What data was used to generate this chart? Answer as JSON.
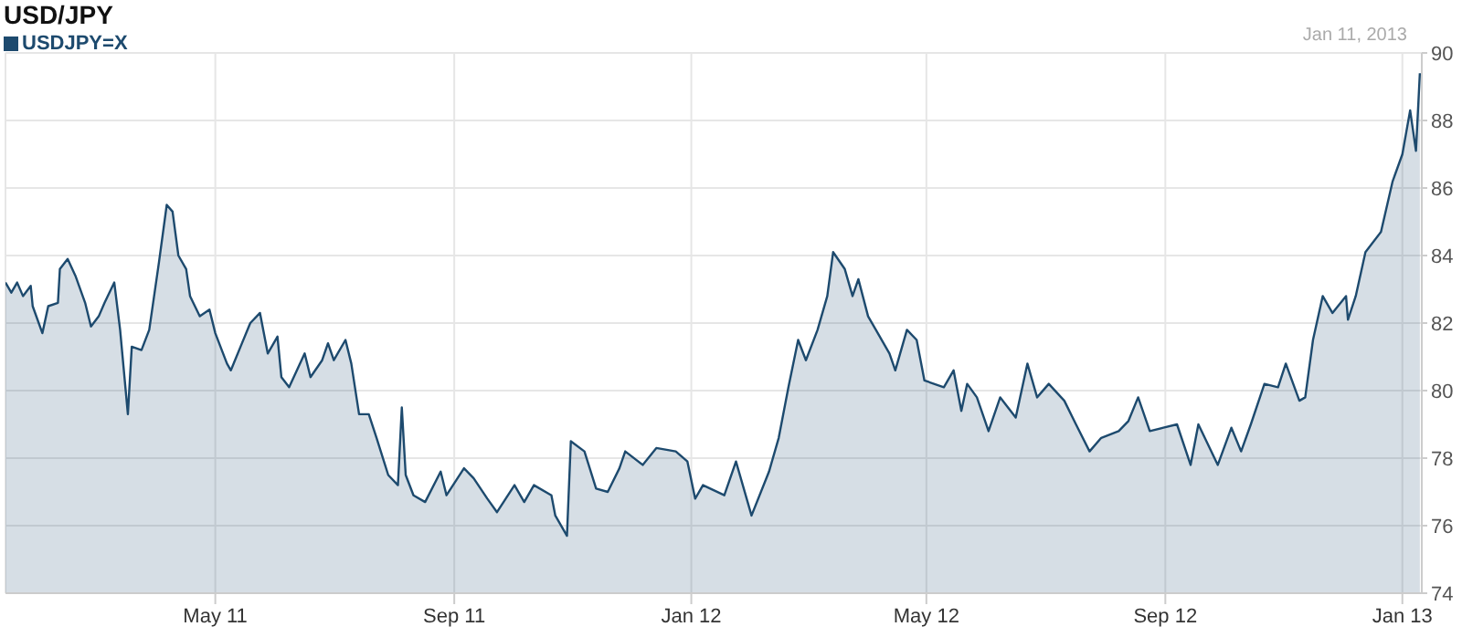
{
  "chart_data": {
    "type": "area",
    "title": "USD/JPY",
    "annotations": [
      "Jan 11, 2013"
    ],
    "legend": "top left",
    "grid": true,
    "marker": "none",
    "xlim": [
      "2011-01-13",
      "2013-01-11"
    ],
    "xticks": [
      {
        "value": "2011-05-01",
        "label": "May 11"
      },
      {
        "value": "2011-09-01",
        "label": "Sep 11"
      },
      {
        "value": "2012-01-01",
        "label": "Jan 12"
      },
      {
        "value": "2012-05-01",
        "label": "May 12"
      },
      {
        "value": "2012-09-01",
        "label": "Sep 12"
      },
      {
        "value": "2013-01-01",
        "label": "Jan 13"
      }
    ],
    "ylim": [
      74,
      90
    ],
    "yticks": [
      74,
      76,
      78,
      80,
      82,
      84,
      86,
      88,
      90
    ],
    "x": [
      "2011-01-13",
      "2011-01-16",
      "2011-01-19",
      "2011-01-22",
      "2011-01-26",
      "2011-01-27",
      "2011-02-01",
      "2011-02-04",
      "2011-02-09",
      "2011-02-10",
      "2011-02-14",
      "2011-02-18",
      "2011-02-23",
      "2011-02-26",
      "2011-03-02",
      "2011-03-05",
      "2011-03-10",
      "2011-03-13",
      "2011-03-17",
      "2011-03-19",
      "2011-03-24",
      "2011-03-28",
      "2011-04-02",
      "2011-04-06",
      "2011-04-09",
      "2011-04-12",
      "2011-04-16",
      "2011-04-18",
      "2011-04-23",
      "2011-04-28",
      "2011-05-01",
      "2011-05-07",
      "2011-05-09",
      "2011-05-14",
      "2011-05-19",
      "2011-05-24",
      "2011-05-28",
      "2011-06-02",
      "2011-06-04",
      "2011-06-08",
      "2011-06-16",
      "2011-06-19",
      "2011-06-25",
      "2011-06-28",
      "2011-07-01",
      "2011-07-07",
      "2011-07-10",
      "2011-07-14",
      "2011-07-19",
      "2011-07-23",
      "2011-07-29",
      "2011-08-03",
      "2011-08-05",
      "2011-08-07",
      "2011-08-11",
      "2011-08-17",
      "2011-08-25",
      "2011-08-28",
      "2011-09-06",
      "2011-09-11",
      "2011-09-18",
      "2011-09-23",
      "2011-10-02",
      "2011-10-07",
      "2011-10-12",
      "2011-10-21",
      "2011-10-23",
      "2011-10-29",
      "2011-10-31",
      "2011-11-07",
      "2011-11-13",
      "2011-11-19",
      "2011-11-25",
      "2011-11-28",
      "2011-12-07",
      "2011-12-14",
      "2011-12-24",
      "2011-12-30",
      "2012-01-03",
      "2012-01-07",
      "2012-01-18",
      "2012-01-24",
      "2012-02-01",
      "2012-02-10",
      "2012-02-15",
      "2012-02-20",
      "2012-02-25",
      "2012-02-29",
      "2012-03-06",
      "2012-03-11",
      "2012-03-14",
      "2012-03-20",
      "2012-03-24",
      "2012-03-27",
      "2012-04-01",
      "2012-04-05",
      "2012-04-12",
      "2012-04-15",
      "2012-04-21",
      "2012-04-26",
      "2012-04-30",
      "2012-05-10",
      "2012-05-15",
      "2012-05-19",
      "2012-05-22",
      "2012-05-27",
      "2012-06-02",
      "2012-06-08",
      "2012-06-16",
      "2012-06-22",
      "2012-06-27",
      "2012-07-03",
      "2012-07-11",
      "2012-07-17",
      "2012-07-24",
      "2012-07-30",
      "2012-08-08",
      "2012-08-13",
      "2012-08-18",
      "2012-08-24",
      "2012-08-31",
      "2012-09-07",
      "2012-09-14",
      "2012-09-18",
      "2012-09-28",
      "2012-10-05",
      "2012-10-10",
      "2012-10-15",
      "2012-10-22",
      "2012-10-29",
      "2012-11-02",
      "2012-11-09",
      "2012-11-12",
      "2012-11-16",
      "2012-11-21",
      "2012-11-26",
      "2012-12-03",
      "2012-12-04",
      "2012-12-08",
      "2012-12-13",
      "2012-12-21",
      "2012-12-27",
      "2013-01-01",
      "2013-01-05",
      "2013-01-08",
      "2013-01-10"
    ],
    "series": [
      {
        "name": "USDJPY=X",
        "color": "#1d4a6e",
        "values": [
          83.2,
          82.9,
          83.2,
          82.8,
          83.1,
          82.5,
          81.7,
          82.5,
          82.6,
          83.6,
          83.9,
          83.4,
          82.6,
          81.9,
          82.2,
          82.6,
          83.2,
          81.8,
          79.3,
          81.3,
          81.2,
          81.8,
          83.8,
          85.5,
          85.3,
          84.0,
          83.6,
          82.8,
          82.2,
          82.4,
          81.7,
          80.8,
          80.6,
          81.3,
          82.0,
          82.3,
          81.1,
          81.6,
          80.4,
          80.1,
          81.1,
          80.4,
          80.9,
          81.4,
          80.9,
          81.5,
          80.8,
          79.3,
          79.3,
          78.6,
          77.5,
          77.2,
          79.5,
          77.5,
          76.9,
          76.7,
          77.6,
          76.9,
          77.7,
          77.4,
          76.8,
          76.4,
          77.2,
          76.7,
          77.2,
          76.9,
          76.3,
          75.7,
          78.5,
          78.2,
          77.1,
          77.0,
          77.7,
          78.2,
          77.8,
          78.3,
          78.2,
          77.9,
          76.8,
          77.2,
          76.9,
          77.9,
          76.3,
          77.6,
          78.6,
          80.1,
          81.5,
          80.9,
          81.8,
          82.8,
          84.1,
          83.6,
          82.8,
          83.3,
          82.2,
          81.8,
          81.1,
          80.6,
          81.8,
          81.5,
          80.3,
          80.1,
          80.6,
          79.4,
          80.2,
          79.8,
          78.8,
          79.8,
          79.2,
          80.8,
          79.8,
          80.2,
          79.7,
          79.0,
          78.2,
          78.6,
          78.8,
          79.1,
          79.8,
          78.8,
          78.9,
          79.0,
          77.8,
          79.0,
          77.8,
          78.9,
          78.2,
          79.0,
          80.2,
          80.1,
          80.8,
          79.7,
          79.8,
          81.5,
          82.8,
          82.3,
          82.8,
          82.1,
          82.8,
          84.1,
          84.7,
          86.2,
          87.0,
          88.3,
          87.1,
          89.4
        ]
      }
    ]
  }
}
